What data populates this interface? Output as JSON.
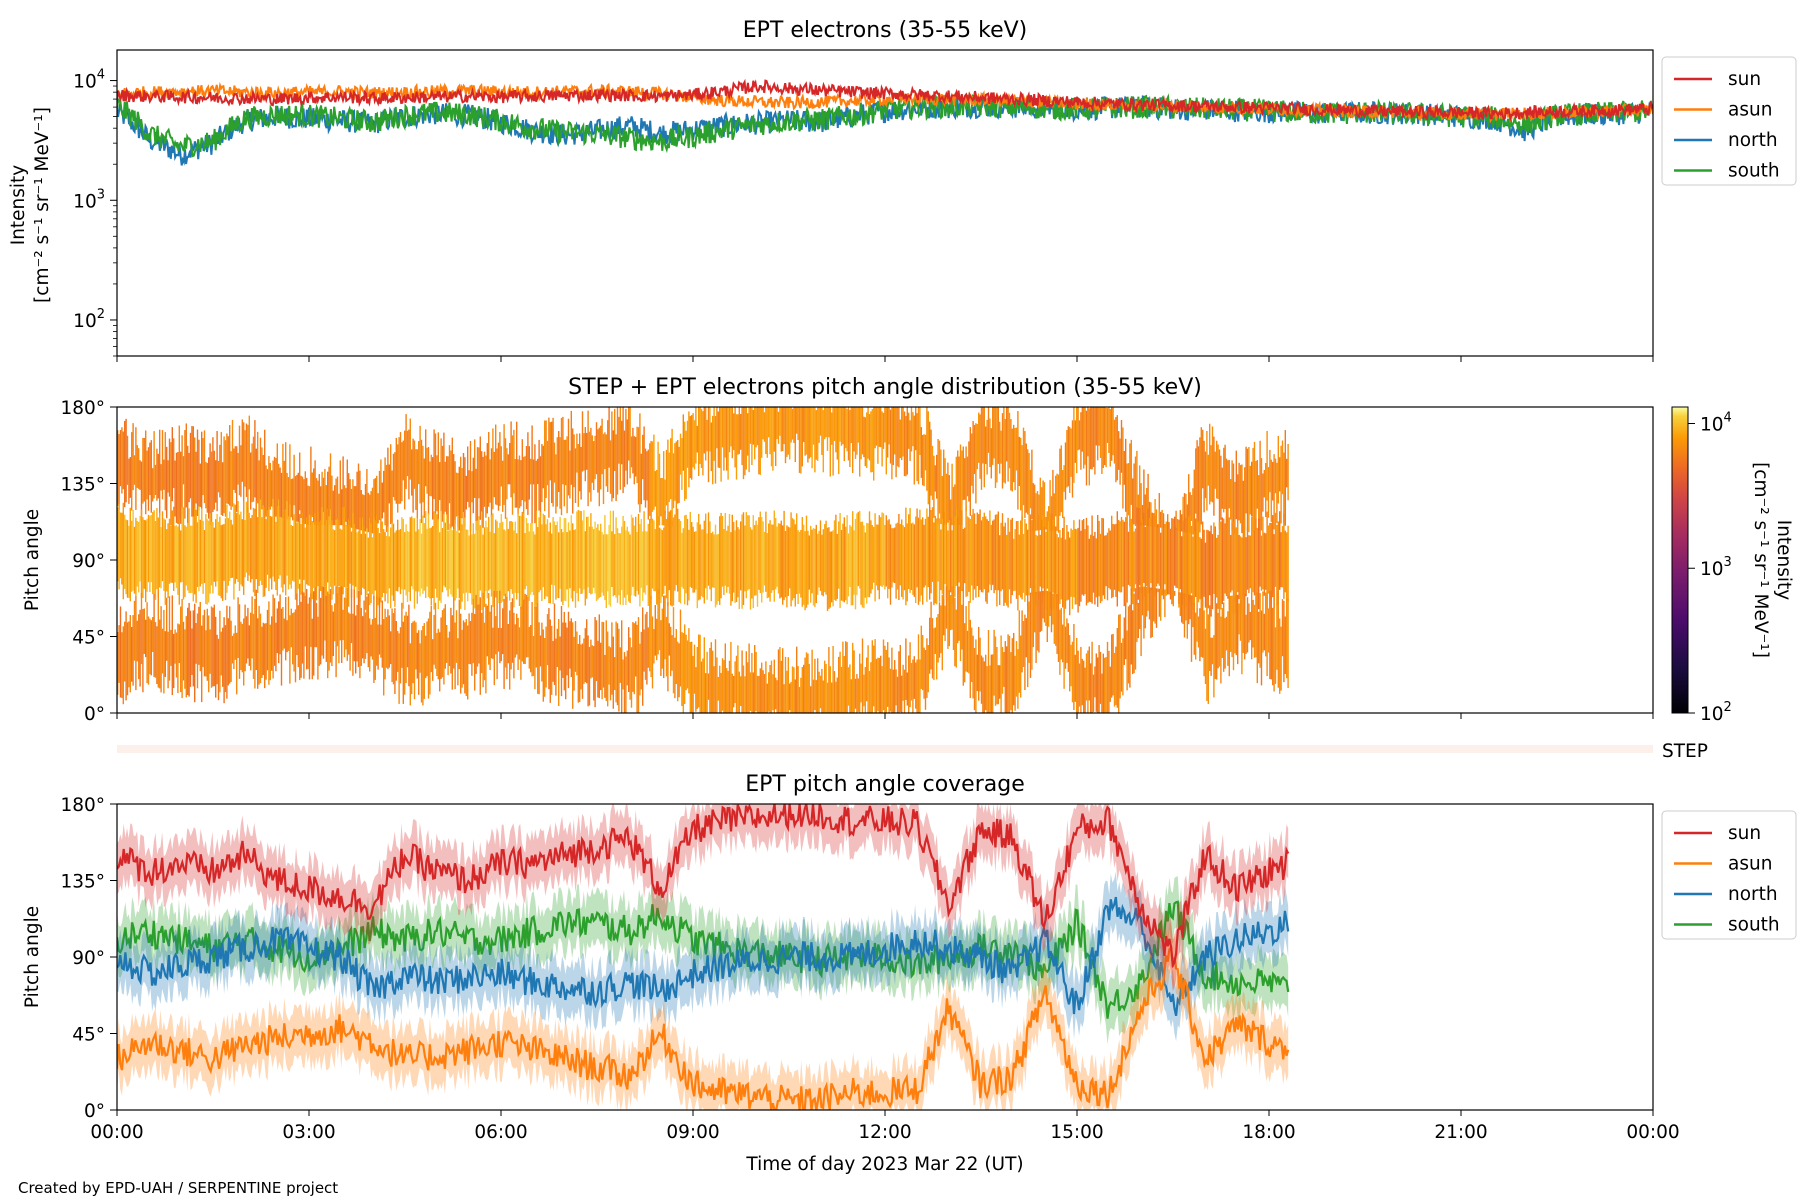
{
  "figure": {
    "credit": "Created by EPD-UAH / SERPENTINE project",
    "xlabel": "Time of day 2023 Mar 22 (UT)",
    "time_ticks": [
      "00:00",
      "03:00",
      "06:00",
      "09:00",
      "12:00",
      "15:00",
      "18:00",
      "21:00",
      "00:00"
    ]
  },
  "panel1": {
    "title": "EPT electrons (35-55 keV)",
    "ylabel_line1": "Intensity",
    "ylabel_line2": "[cm⁻² s⁻¹ sr⁻¹ MeV⁻¹]",
    "yticks": [
      {
        "base": "10",
        "exp": "4"
      },
      {
        "base": "10",
        "exp": "3"
      },
      {
        "base": "10",
        "exp": "2"
      }
    ],
    "legend": [
      "sun",
      "asun",
      "north",
      "south"
    ]
  },
  "panel2": {
    "title": "STEP + EPT electrons pitch angle distribution (35-55 keV)",
    "ylabel": "Pitch angle",
    "yticks": [
      "180°",
      "135°",
      "90°",
      "45°",
      "0°"
    ],
    "colorbar_label_line1": "Intensity",
    "colorbar_label_line2": "[cm⁻² s⁻¹ sr⁻¹ MeV⁻¹]",
    "colorbar_ticks": [
      {
        "base": "10",
        "exp": "4"
      },
      {
        "base": "10",
        "exp": "3"
      },
      {
        "base": "10",
        "exp": "2"
      }
    ]
  },
  "step_strip": {
    "label": "STEP"
  },
  "panel3": {
    "title": "EPT pitch angle coverage",
    "ylabel": "Pitch angle",
    "yticks": [
      "180°",
      "135°",
      "90°",
      "45°",
      "0°"
    ],
    "legend": [
      "sun",
      "asun",
      "north",
      "south"
    ]
  },
  "colors": {
    "sun": "#d62728",
    "asun": "#ff7f0e",
    "north": "#1f77b4",
    "south": "#2ca02c",
    "step_strip": "#fdf0ea"
  },
  "chart_data": [
    {
      "type": "line",
      "title": "EPT electrons (35-55 keV)",
      "ylabel": "Intensity [cm⁻² s⁻¹ sr⁻¹ MeV⁻¹]",
      "xlabel": "Time of day 2023 Mar 22 (UT)",
      "yscale": "log",
      "ylim": [
        50,
        18000
      ],
      "xlim_hours": [
        0,
        24
      ],
      "legend_position": "outside-right-top",
      "x_hours": [
        0,
        0.5,
        1,
        1.5,
        2,
        2.5,
        3,
        3.5,
        4,
        4.5,
        5,
        5.5,
        6,
        6.5,
        7,
        7.5,
        8,
        8.5,
        9,
        9.5,
        10,
        10.5,
        11,
        11.5,
        12,
        12.5,
        13,
        13.5,
        14,
        14.5,
        15,
        15.5,
        16,
        16.5,
        17,
        17.5,
        18,
        18.5,
        19,
        19.5,
        20,
        20.5,
        21,
        21.5,
        22,
        22.5,
        23,
        23.5,
        24
      ],
      "series": [
        {
          "name": "sun",
          "values": [
            7500,
            7400,
            7300,
            7200,
            7100,
            7000,
            7200,
            7300,
            7100,
            7200,
            7300,
            7400,
            7300,
            7400,
            7500,
            7600,
            7500,
            7400,
            7600,
            8200,
            9000,
            8600,
            8300,
            8000,
            7800,
            7600,
            7400,
            7200,
            7000,
            6800,
            6600,
            6400,
            6300,
            6200,
            6100,
            6000,
            5900,
            5800,
            5700,
            5600,
            5500,
            5400,
            5400,
            5300,
            5400,
            5500,
            5600,
            5700,
            5800
          ]
        },
        {
          "name": "asun",
          "values": [
            7800,
            8000,
            8100,
            8200,
            8000,
            7900,
            8000,
            8100,
            7900,
            8000,
            8100,
            8200,
            8100,
            8000,
            8100,
            8200,
            8100,
            7800,
            7200,
            6800,
            6600,
            6500,
            6600,
            6800,
            7000,
            7100,
            7000,
            6900,
            6800,
            6600,
            6400,
            6300,
            6200,
            6100,
            6000,
            5900,
            5800,
            5700,
            5600,
            5500,
            5400,
            5300,
            5300,
            5200,
            5300,
            5400,
            5500,
            5600,
            5700
          ]
        },
        {
          "name": "north",
          "values": [
            5500,
            3200,
            2400,
            3000,
            4600,
            5000,
            4800,
            4600,
            4400,
            5000,
            5300,
            5100,
            4500,
            3800,
            3500,
            3800,
            4200,
            3600,
            3900,
            4200,
            4400,
            4600,
            4500,
            5000,
            5600,
            5900,
            6000,
            6100,
            6000,
            5900,
            5800,
            5900,
            6000,
            5800,
            5700,
            5600,
            5500,
            5400,
            5300,
            5400,
            5300,
            5200,
            5000,
            4800,
            3800,
            5000,
            5200,
            5300,
            5500
          ]
        },
        {
          "name": "south",
          "values": [
            6200,
            3600,
            2800,
            3100,
            4800,
            5200,
            5100,
            4800,
            4500,
            5100,
            5400,
            5200,
            4600,
            4000,
            3700,
            3600,
            3300,
            3100,
            3400,
            3900,
            4300,
            4600,
            4700,
            5100,
            5700,
            6000,
            6100,
            6100,
            6000,
            5900,
            5800,
            5900,
            6000,
            5900,
            5800,
            5700,
            5600,
            5400,
            5300,
            5400,
            5300,
            5200,
            5000,
            4900,
            4300,
            5100,
            5300,
            5400,
            5600
          ]
        }
      ]
    },
    {
      "type": "heatmap",
      "title": "STEP + EPT electrons pitch angle distribution (35-55 keV)",
      "ylabel": "Pitch angle",
      "xlabel": "Time of day 2023 Mar 22 (UT)",
      "ylim": [
        0,
        180
      ],
      "xlim_hours": [
        0,
        24
      ],
      "data_end_hours": 18.3,
      "colorscale": "inferno-like (black→purple→red→orange→yellow)",
      "color_range": [
        100,
        13000
      ],
      "color_scale_type": "log",
      "colorbar_label": "Intensity [cm⁻² s⁻¹ sr⁻¹ MeV⁻¹]",
      "segments": [
        {
          "x_start": 0.0,
          "x_end": 1.5,
          "high_band_intensity": 6000,
          "mid_band_intensity": 9000,
          "low_band_intensity": 6000
        },
        {
          "x_start": 1.5,
          "x_end": 4.5,
          "high_band_intensity": 6200,
          "mid_band_intensity": 8500,
          "low_band_intensity": 6200
        },
        {
          "x_start": 4.5,
          "x_end": 8.3,
          "high_band_intensity": 6300,
          "mid_band_intensity": 9500,
          "low_band_intensity": 6300
        },
        {
          "x_start": 8.3,
          "x_end": 12.0,
          "high_band_intensity": 7500,
          "mid_band_intensity": 8500,
          "low_band_intensity": 7000
        },
        {
          "x_start": 12.0,
          "x_end": 15.0,
          "high_band_intensity": 6800,
          "mid_band_intensity": 7500,
          "low_band_intensity": 6800
        },
        {
          "x_start": 15.0,
          "x_end": 18.3,
          "high_band_intensity": 6500,
          "mid_band_intensity": 6500,
          "low_band_intensity": 6500
        }
      ]
    },
    {
      "type": "line",
      "title": "EPT pitch angle coverage",
      "ylabel": "Pitch angle",
      "xlabel": "Time of day 2023 Mar 22 (UT)",
      "ylim": [
        0,
        180
      ],
      "xlim_hours": [
        0,
        24
      ],
      "legend_position": "outside-right-top",
      "shaded_band_halfwidth_deg": 15,
      "x_hours": [
        0,
        0.5,
        1,
        1.5,
        2,
        2.5,
        3,
        3.5,
        4,
        4.5,
        5,
        5.5,
        6,
        6.5,
        7,
        7.5,
        8,
        8.5,
        9,
        9.5,
        10,
        10.5,
        11,
        11.5,
        12,
        12.5,
        13,
        13.5,
        14,
        14.5,
        15,
        15.5,
        16,
        16.5,
        17,
        17.5,
        18,
        18.3
      ],
      "series": [
        {
          "name": "sun",
          "values": [
            150,
            140,
            145,
            140,
            150,
            135,
            130,
            125,
            120,
            150,
            140,
            135,
            145,
            145,
            150,
            155,
            160,
            130,
            165,
            170,
            172,
            175,
            174,
            170,
            170,
            168,
            120,
            165,
            160,
            110,
            165,
            170,
            120,
            90,
            150,
            130,
            140,
            145
          ]
        },
        {
          "name": "asun",
          "values": [
            30,
            40,
            35,
            30,
            38,
            42,
            45,
            48,
            40,
            30,
            32,
            35,
            40,
            35,
            30,
            25,
            20,
            45,
            15,
            10,
            8,
            5,
            6,
            10,
            10,
            12,
            60,
            15,
            20,
            70,
            15,
            10,
            60,
            90,
            30,
            50,
            40,
            35
          ]
        },
        {
          "name": "north",
          "values": [
            90,
            80,
            85,
            90,
            95,
            100,
            95,
            90,
            70,
            80,
            75,
            78,
            80,
            75,
            72,
            70,
            75,
            70,
            80,
            85,
            88,
            90,
            90,
            90,
            95,
            100,
            95,
            90,
            80,
            100,
            60,
            120,
            110,
            60,
            90,
            100,
            105,
            110
          ]
        },
        {
          "name": "south",
          "values": [
            100,
            105,
            100,
            95,
            100,
            95,
            90,
            95,
            105,
            100,
            105,
            100,
            100,
            105,
            110,
            110,
            105,
            115,
            100,
            95,
            92,
            90,
            88,
            90,
            90,
            85,
            90,
            95,
            95,
            80,
            110,
            60,
            75,
            120,
            80,
            75,
            75,
            70
          ]
        }
      ]
    }
  ]
}
